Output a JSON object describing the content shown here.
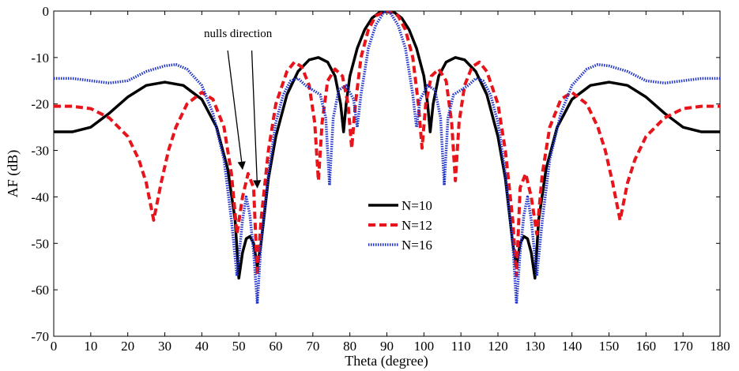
{
  "chart_data": {
    "type": "line",
    "title": "",
    "xlabel": "Theta (degree)",
    "ylabel": "AF (dB)",
    "xlim": [
      0,
      180
    ],
    "ylim": [
      -70,
      0
    ],
    "xticks": [
      0,
      10,
      20,
      30,
      40,
      50,
      60,
      70,
      80,
      90,
      100,
      110,
      120,
      130,
      140,
      150,
      160,
      170,
      180
    ],
    "yticks": [
      0,
      -10,
      -20,
      -30,
      -40,
      -50,
      -60,
      -70
    ],
    "grid": false,
    "legend_position": "center",
    "annotation": "nulls direction",
    "annotation_targets": [
      [
        51,
        -34
      ],
      [
        55,
        -38
      ]
    ],
    "series": [
      {
        "name": "N=10",
        "color": "#000000",
        "style": "solid",
        "points": [
          [
            0,
            -26
          ],
          [
            5,
            -26
          ],
          [
            10,
            -25
          ],
          [
            15,
            -22
          ],
          [
            20,
            -18.5
          ],
          [
            25,
            -16
          ],
          [
            30,
            -15.3
          ],
          [
            35,
            -16
          ],
          [
            40,
            -19
          ],
          [
            44,
            -25
          ],
          [
            47,
            -34
          ],
          [
            49,
            -45
          ],
          [
            50,
            -57.5
          ],
          [
            51,
            -52
          ],
          [
            52,
            -49
          ],
          [
            53,
            -48.5
          ],
          [
            54,
            -50
          ],
          [
            55,
            -55
          ],
          [
            56,
            -50
          ],
          [
            58,
            -36
          ],
          [
            60,
            -27
          ],
          [
            63,
            -18
          ],
          [
            66,
            -13
          ],
          [
            69,
            -10.5
          ],
          [
            71.5,
            -10
          ],
          [
            74,
            -11
          ],
          [
            76,
            -14
          ],
          [
            77.5,
            -20
          ],
          [
            78.3,
            -26
          ],
          [
            79,
            -20
          ],
          [
            80,
            -14
          ],
          [
            82,
            -8
          ],
          [
            84,
            -4
          ],
          [
            86,
            -1.5
          ],
          [
            88,
            -0.3
          ],
          [
            90,
            0
          ],
          [
            92,
            -0.3
          ],
          [
            94,
            -1.5
          ],
          [
            96,
            -4
          ],
          [
            98,
            -8
          ],
          [
            100,
            -14
          ],
          [
            101,
            -20
          ],
          [
            101.7,
            -26
          ],
          [
            102.5,
            -20
          ],
          [
            104,
            -14
          ],
          [
            106,
            -11
          ],
          [
            108.5,
            -10
          ],
          [
            111,
            -10.5
          ],
          [
            114,
            -13
          ],
          [
            117,
            -18
          ],
          [
            120,
            -27
          ],
          [
            122,
            -36
          ],
          [
            124,
            -50
          ],
          [
            125,
            -55
          ],
          [
            126,
            -50
          ],
          [
            127,
            -48.5
          ],
          [
            128,
            -49
          ],
          [
            129,
            -52
          ],
          [
            130,
            -57.5
          ],
          [
            131,
            -45
          ],
          [
            133,
            -34
          ],
          [
            136,
            -25
          ],
          [
            140,
            -19
          ],
          [
            145,
            -16
          ],
          [
            150,
            -15.3
          ],
          [
            155,
            -16
          ],
          [
            160,
            -18.5
          ],
          [
            165,
            -22
          ],
          [
            170,
            -25
          ],
          [
            175,
            -26
          ],
          [
            180,
            -26
          ]
        ]
      },
      {
        "name": "N=12",
        "color": "#e8141b",
        "style": "dashed",
        "points": [
          [
            0,
            -20.5
          ],
          [
            5,
            -20.5
          ],
          [
            10,
            -21
          ],
          [
            15,
            -23
          ],
          [
            20,
            -27
          ],
          [
            23,
            -32
          ],
          [
            25,
            -37
          ],
          [
            27,
            -45
          ],
          [
            29,
            -37
          ],
          [
            31,
            -30
          ],
          [
            33,
            -25
          ],
          [
            36,
            -20
          ],
          [
            40,
            -17.5
          ],
          [
            43,
            -19
          ],
          [
            46,
            -25
          ],
          [
            48,
            -35
          ],
          [
            49.5,
            -48
          ],
          [
            51,
            -40
          ],
          [
            52.5,
            -35
          ],
          [
            54,
            -38
          ],
          [
            55,
            -57
          ],
          [
            56,
            -45
          ],
          [
            58,
            -30
          ],
          [
            60,
            -20
          ],
          [
            63,
            -13
          ],
          [
            65,
            -11
          ],
          [
            67,
            -12
          ],
          [
            69,
            -16
          ],
          [
            70.5,
            -24
          ],
          [
            71.5,
            -36.5
          ],
          [
            72.5,
            -24
          ],
          [
            74,
            -15
          ],
          [
            76,
            -12.5
          ],
          [
            78,
            -14
          ],
          [
            79.5,
            -20
          ],
          [
            80.5,
            -29.5
          ],
          [
            81.5,
            -20
          ],
          [
            83,
            -10
          ],
          [
            85,
            -4
          ],
          [
            87,
            -1
          ],
          [
            90,
            0
          ],
          [
            93,
            -1
          ],
          [
            95,
            -4
          ],
          [
            97,
            -10
          ],
          [
            98.5,
            -20
          ],
          [
            99.5,
            -29.5
          ],
          [
            100.5,
            -20
          ],
          [
            102,
            -14
          ],
          [
            104,
            -12.5
          ],
          [
            106,
            -15
          ],
          [
            107.5,
            -24
          ],
          [
            108.5,
            -36.5
          ],
          [
            109.5,
            -24
          ],
          [
            111,
            -16
          ],
          [
            113,
            -12
          ],
          [
            115,
            -11
          ],
          [
            117,
            -13
          ],
          [
            120,
            -20
          ],
          [
            122,
            -30
          ],
          [
            124,
            -45
          ],
          [
            125,
            -57
          ],
          [
            126,
            -38
          ],
          [
            127.5,
            -35
          ],
          [
            129,
            -40
          ],
          [
            130.5,
            -48
          ],
          [
            132,
            -35
          ],
          [
            134,
            -25
          ],
          [
            137,
            -19
          ],
          [
            140,
            -17.5
          ],
          [
            144,
            -20
          ],
          [
            147,
            -25
          ],
          [
            149,
            -30
          ],
          [
            151,
            -37
          ],
          [
            153,
            -45
          ],
          [
            155,
            -37
          ],
          [
            157,
            -32
          ],
          [
            160,
            -27
          ],
          [
            165,
            -23
          ],
          [
            170,
            -21
          ],
          [
            175,
            -20.5
          ],
          [
            180,
            -20.5
          ]
        ]
      },
      {
        "name": "N=16",
        "color": "#1f32c8",
        "style": "dotted",
        "points": [
          [
            0,
            -14.5
          ],
          [
            5,
            -14.5
          ],
          [
            10,
            -15
          ],
          [
            15,
            -15.5
          ],
          [
            20,
            -15
          ],
          [
            25,
            -13
          ],
          [
            30,
            -11.8
          ],
          [
            33,
            -11.5
          ],
          [
            36,
            -12.5
          ],
          [
            40,
            -16
          ],
          [
            43,
            -22
          ],
          [
            46,
            -32
          ],
          [
            48,
            -45
          ],
          [
            49.5,
            -57
          ],
          [
            51,
            -45
          ],
          [
            52,
            -40
          ],
          [
            53,
            -44
          ],
          [
            54,
            -52
          ],
          [
            55,
            -63
          ],
          [
            56,
            -50
          ],
          [
            58,
            -35
          ],
          [
            60,
            -24
          ],
          [
            62,
            -18
          ],
          [
            64,
            -15
          ],
          [
            66,
            -14.5
          ],
          [
            68,
            -16
          ],
          [
            70,
            -17
          ],
          [
            72,
            -18
          ],
          [
            73.5,
            -23
          ],
          [
            74.5,
            -37.5
          ],
          [
            75.5,
            -23
          ],
          [
            77,
            -17
          ],
          [
            79,
            -16
          ],
          [
            81,
            -19
          ],
          [
            82,
            -25
          ],
          [
            83,
            -18
          ],
          [
            85,
            -8
          ],
          [
            87,
            -3
          ],
          [
            89,
            -0.5
          ],
          [
            90,
            0
          ],
          [
            91,
            -0.5
          ],
          [
            93,
            -3
          ],
          [
            95,
            -8
          ],
          [
            97,
            -18
          ],
          [
            98,
            -25
          ],
          [
            99,
            -19
          ],
          [
            101,
            -16
          ],
          [
            103,
            -17
          ],
          [
            104.5,
            -23
          ],
          [
            105.5,
            -37.5
          ],
          [
            106.5,
            -23
          ],
          [
            108,
            -18
          ],
          [
            110,
            -17
          ],
          [
            112,
            -16
          ],
          [
            114,
            -14.5
          ],
          [
            116,
            -15
          ],
          [
            118,
            -18
          ],
          [
            120,
            -24
          ],
          [
            122,
            -35
          ],
          [
            124,
            -50
          ],
          [
            125,
            -63
          ],
          [
            126,
            -52
          ],
          [
            127,
            -44
          ],
          [
            128,
            -40
          ],
          [
            129,
            -45
          ],
          [
            130.5,
            -57
          ],
          [
            132,
            -45
          ],
          [
            134,
            -32
          ],
          [
            137,
            -22
          ],
          [
            140,
            -16
          ],
          [
            144,
            -12.5
          ],
          [
            147,
            -11.5
          ],
          [
            150,
            -11.8
          ],
          [
            155,
            -13
          ],
          [
            160,
            -15
          ],
          [
            165,
            -15.5
          ],
          [
            170,
            -15
          ],
          [
            175,
            -14.5
          ],
          [
            180,
            -14.5
          ]
        ]
      }
    ]
  }
}
